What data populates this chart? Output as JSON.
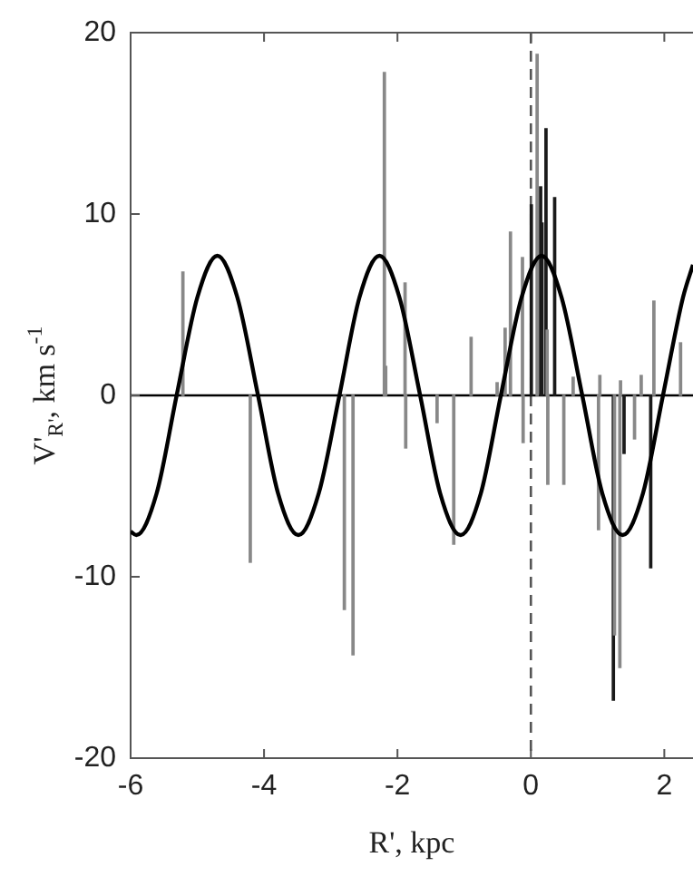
{
  "chart_data": {
    "type": "bar",
    "xlabel": "R', kpc",
    "ylabel": "V'$_{R'}$, km s$^{-1}$",
    "xlim": [
      -6,
      2.43
    ],
    "xticks": [
      -6,
      -4,
      -2,
      0,
      2
    ],
    "ylim": [
      -20,
      20
    ],
    "yticks": [
      -20,
      -10,
      0,
      10,
      20
    ],
    "grid": false,
    "legend": false,
    "ref_lines": [
      {
        "axis": "x",
        "value": 0,
        "color": "#555555",
        "line_style": "dashed"
      },
      {
        "axis": "y",
        "value": 0,
        "color": "#000000",
        "line_style": "solid"
      }
    ],
    "series": [
      {
        "color": "#888888",
        "x": [
          -5.2,
          -4.19,
          -2.78,
          -2.65,
          -2.18,
          -2.16,
          -1.87,
          -1.86,
          -1.39,
          -1.14,
          -0.88,
          -0.49,
          -0.37,
          -0.29,
          -0.11,
          -0.1,
          0.11,
          0.26,
          0.27,
          0.51,
          0.65,
          1.03,
          1.05,
          1.27,
          1.35,
          1.36,
          1.57,
          1.67,
          1.86,
          2.26
        ],
        "values": [
          6.8,
          -9.2,
          -11.8,
          -14.3,
          17.8,
          1.6,
          6.2,
          -2.9,
          -1.5,
          -8.2,
          3.2,
          0.7,
          3.7,
          9.0,
          7.6,
          -2.6,
          18.8,
          3.6,
          -4.9,
          -4.9,
          1.0,
          -7.4,
          1.1,
          -13.2,
          -15.0,
          0.8,
          -2.4,
          1.1,
          5.2,
          2.9
        ]
      },
      {
        "color": "#1a1a1a",
        "x": [
          -0.01,
          0.13,
          0.15,
          0.21,
          0.34,
          1.22,
          1.38,
          1.78
        ],
        "values": [
          10.5,
          11.5,
          9.5,
          14.7,
          10.9,
          -16.8,
          -3.2,
          -9.5
        ]
      },
      {
        "type": "line",
        "color": "#000000",
        "x": [
          -6,
          -5.915,
          -5.61,
          -5.31,
          -5.0,
          -4.7,
          -4.4,
          -4.09,
          -3.79,
          -3.485,
          -3.18,
          -2.87,
          -2.57,
          -2.27,
          -1.97,
          -1.66,
          -1.36,
          -1.055,
          -0.75,
          -0.45,
          -0.14,
          0.16,
          0.46,
          0.77,
          1.07,
          1.375,
          1.68,
          1.98,
          2.28,
          2.43
        ],
        "values": [
          -7.5,
          -7.7,
          -5.4,
          0,
          5.4,
          7.7,
          5.4,
          0,
          -5.4,
          -7.7,
          -5.4,
          0,
          5.4,
          7.7,
          5.4,
          0,
          -5.4,
          -7.7,
          -5.4,
          0,
          5.4,
          7.7,
          5.4,
          0,
          -5.4,
          -7.7,
          -5.4,
          0,
          5.4,
          7.2
        ]
      }
    ]
  }
}
